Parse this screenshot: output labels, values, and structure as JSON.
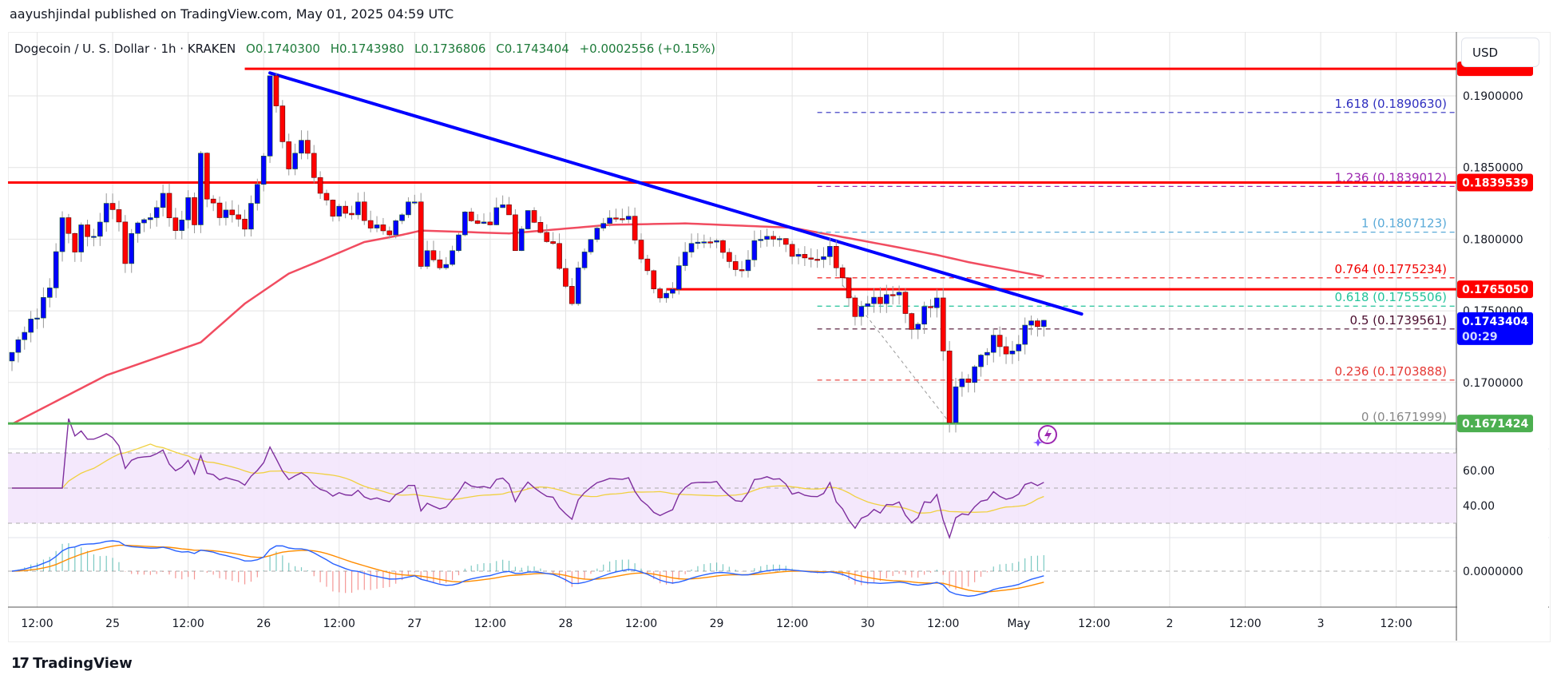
{
  "header": {
    "published": "aayushjindal published on TradingView.com, May 01, 2025 04:59 UTC"
  },
  "legend": {
    "symbol": "Dogecoin / U. S. Dollar · 1h · KRAKEN",
    "open": "O0.1740300",
    "high": "H0.1743980",
    "low": "L0.1736806",
    "close": "C0.1743404",
    "change": "+0.0002556 (+0.15%)"
  },
  "currency_button": "USD",
  "price_axis": {
    "ticks": [
      "0.1900000",
      "0.1850000",
      "0.1800000",
      "0.1750000",
      "0.1700000"
    ],
    "tick_values": [
      0.19,
      0.185,
      0.18,
      0.175,
      0.17
    ],
    "badges": [
      {
        "text": "0.1839539",
        "value": 0.1839539,
        "color": "#ff0000"
      },
      {
        "text": "0.1765050",
        "value": 0.176505,
        "color": "#ff0000"
      },
      {
        "text": "0.1671424",
        "value": 0.1671424,
        "color": "#4caf50"
      }
    ],
    "last_price": {
      "text": "0.1743404",
      "value": 0.1743404,
      "countdown": "00:29",
      "color": "#0000ff"
    }
  },
  "rsi_axis": [
    "60.00",
    "40.00"
  ],
  "macd_axis": [
    "0.0000000"
  ],
  "time_axis": [
    {
      "label": "12:00",
      "hour": 4
    },
    {
      "label": "25",
      "hour": 16
    },
    {
      "label": "12:00",
      "hour": 28
    },
    {
      "label": "26",
      "hour": 40
    },
    {
      "label": "12:00",
      "hour": 52
    },
    {
      "label": "27",
      "hour": 64
    },
    {
      "label": "12:00",
      "hour": 76
    },
    {
      "label": "28",
      "hour": 88
    },
    {
      "label": "12:00",
      "hour": 100
    },
    {
      "label": "29",
      "hour": 112
    },
    {
      "label": "12:00",
      "hour": 124
    },
    {
      "label": "30",
      "hour": 136
    },
    {
      "label": "12:00",
      "hour": 148
    },
    {
      "label": "May",
      "hour": 160
    },
    {
      "label": "12:00",
      "hour": 172
    },
    {
      "label": "2",
      "hour": 184
    },
    {
      "label": "12:00",
      "hour": 196
    },
    {
      "label": "3",
      "hour": 208
    },
    {
      "label": "12:00",
      "hour": 220
    }
  ],
  "fib_levels": [
    {
      "label": "1.618 (0.1890630)",
      "value": 0.189063,
      "color": "#2f2fbf"
    },
    {
      "label": "1.236 (0.1839012)",
      "value": 0.1839012,
      "color": "#9c27b0"
    },
    {
      "label": "1 (0.1807123)",
      "value": 0.1807123,
      "color": "#5aaad8"
    },
    {
      "label": "0.764 (0.1775234)",
      "value": 0.1775234,
      "color": "#f00000"
    },
    {
      "label": "0.618 (0.1755506)",
      "value": 0.1755506,
      "color": "#22c39a"
    },
    {
      "label": "0.5 (0.1739561)",
      "value": 0.1739561,
      "color": "#4a0d2e"
    },
    {
      "label": "0.236 (0.1703888)",
      "value": 0.1703888,
      "color": "#e53935"
    },
    {
      "label": "0 (0.1671999)",
      "value": 0.1671999,
      "color": "#888888"
    }
  ],
  "colors": {
    "up": "#0000ff",
    "down": "#ff0000",
    "ma": "#f0394f",
    "trend": "#0000ff",
    "support": "#4caf50",
    "rsi": "#7e2e9e",
    "rsi_ma": "#f0d040",
    "macd": "#2962ff",
    "signal": "#ff8c00"
  },
  "brand": "TradingView",
  "chart_data": {
    "type": "candlestick",
    "interval": "1h",
    "x_unit": "hours since Apr 24 08:00",
    "close_anchors": [
      [
        0,
        0.1721
      ],
      [
        2,
        0.1735
      ],
      [
        4,
        0.1745
      ],
      [
        6,
        0.1766
      ],
      [
        8,
        0.1815
      ],
      [
        9,
        0.1804
      ],
      [
        10,
        0.1791
      ],
      [
        11,
        0.181
      ],
      [
        13,
        0.1802
      ],
      [
        15,
        0.1825
      ],
      [
        17,
        0.1812
      ],
      [
        18,
        0.1783
      ],
      [
        19,
        0.1804
      ],
      [
        22,
        0.1815
      ],
      [
        24,
        0.1832
      ],
      [
        26,
        0.1806
      ],
      [
        28,
        0.1829
      ],
      [
        29,
        0.181
      ],
      [
        30,
        0.186
      ],
      [
        31,
        0.1828
      ],
      [
        33,
        0.1815
      ],
      [
        35,
        0.1817
      ],
      [
        37,
        0.1807
      ],
      [
        38,
        0.1825
      ],
      [
        40,
        0.1858
      ],
      [
        41,
        0.1914
      ],
      [
        42,
        0.1893
      ],
      [
        43,
        0.1868
      ],
      [
        44,
        0.1849
      ],
      [
        45,
        0.186
      ],
      [
        46,
        0.1869
      ],
      [
        48,
        0.1843
      ],
      [
        49,
        0.1832
      ],
      [
        51,
        0.1816
      ],
      [
        52,
        0.1823
      ],
      [
        54,
        0.1817
      ],
      [
        55,
        0.1826
      ],
      [
        56,
        0.1813
      ],
      [
        58,
        0.181
      ],
      [
        60,
        0.1803
      ],
      [
        62,
        0.1817
      ],
      [
        64,
        0.1826
      ],
      [
        65,
        0.1781
      ],
      [
        66,
        0.1792
      ],
      [
        68,
        0.178
      ],
      [
        70,
        0.1792
      ],
      [
        71,
        0.1803
      ],
      [
        72,
        0.1819
      ],
      [
        74,
        0.1811
      ],
      [
        76,
        0.181
      ],
      [
        77,
        0.1822
      ],
      [
        79,
        0.1817
      ],
      [
        80,
        0.1792
      ],
      [
        82,
        0.182
      ],
      [
        86,
        0.1797
      ],
      [
        89,
        0.1755
      ],
      [
        90,
        0.178
      ],
      [
        94,
        0.1811
      ],
      [
        98,
        0.1816
      ],
      [
        101,
        0.1778
      ],
      [
        103,
        0.1759
      ],
      [
        105,
        0.1765
      ],
      [
        107,
        0.1791
      ],
      [
        112,
        0.1799
      ],
      [
        116,
        0.1778
      ],
      [
        118,
        0.1799
      ],
      [
        121,
        0.18
      ],
      [
        124,
        0.1788
      ],
      [
        127,
        0.1786
      ],
      [
        130,
        0.1795
      ],
      [
        132,
        0.1773
      ],
      [
        133,
        0.1759
      ],
      [
        134,
        0.1746
      ],
      [
        136,
        0.1755
      ],
      [
        138,
        0.1755
      ],
      [
        140,
        0.1761
      ],
      [
        141,
        0.1763
      ],
      [
        143,
        0.1737
      ],
      [
        145,
        0.1753
      ],
      [
        147,
        0.1759
      ],
      [
        148,
        0.1722
      ],
      [
        149,
        0.1672
      ],
      [
        150,
        0.1697
      ],
      [
        152,
        0.17
      ],
      [
        153,
        0.1711
      ],
      [
        155,
        0.1721
      ],
      [
        156,
        0.1733
      ],
      [
        157,
        0.1725
      ],
      [
        159,
        0.1722
      ],
      [
        161,
        0.174
      ],
      [
        162,
        0.1743
      ],
      [
        163,
        0.1739
      ],
      [
        164,
        0.1743404
      ]
    ],
    "ma_anchors": [
      [
        0,
        0.1671
      ],
      [
        15,
        0.1705
      ],
      [
        30,
        0.1728
      ],
      [
        37,
        0.1755
      ],
      [
        44,
        0.1776
      ],
      [
        49,
        0.1785
      ],
      [
        56,
        0.1798
      ],
      [
        62,
        0.1803
      ],
      [
        65,
        0.1806
      ],
      [
        79,
        0.1804
      ],
      [
        95,
        0.181
      ],
      [
        107,
        0.1811
      ],
      [
        124,
        0.1808
      ],
      [
        140,
        0.1795
      ],
      [
        147,
        0.1789
      ],
      [
        152,
        0.1784
      ],
      [
        164,
        0.1774
      ]
    ],
    "trendline": {
      "start": [
        41,
        0.1916
      ],
      "end": [
        170,
        0.17478
      ]
    },
    "horizontal_lines": [
      {
        "value": 0.19189,
        "from_hour": 37,
        "color": "#ff0000"
      },
      {
        "value": 0.1839539,
        "from_hour": 0,
        "color": "#ff0000"
      },
      {
        "value": 0.176505,
        "from_hour": 104,
        "color": "#ff0000"
      },
      {
        "value": 0.1671424,
        "from_hour": 0,
        "color": "#4caf50"
      }
    ],
    "fib_from_hour": 128,
    "fib_swing": {
      "start": [
        132,
        0.1768
      ],
      "end": [
        149,
        0.1672
      ]
    },
    "ylim": [
      0.1655,
      0.1935
    ],
    "rsi_band": [
      30,
      70
    ],
    "rsi_lines": [
      60,
      40
    ]
  }
}
